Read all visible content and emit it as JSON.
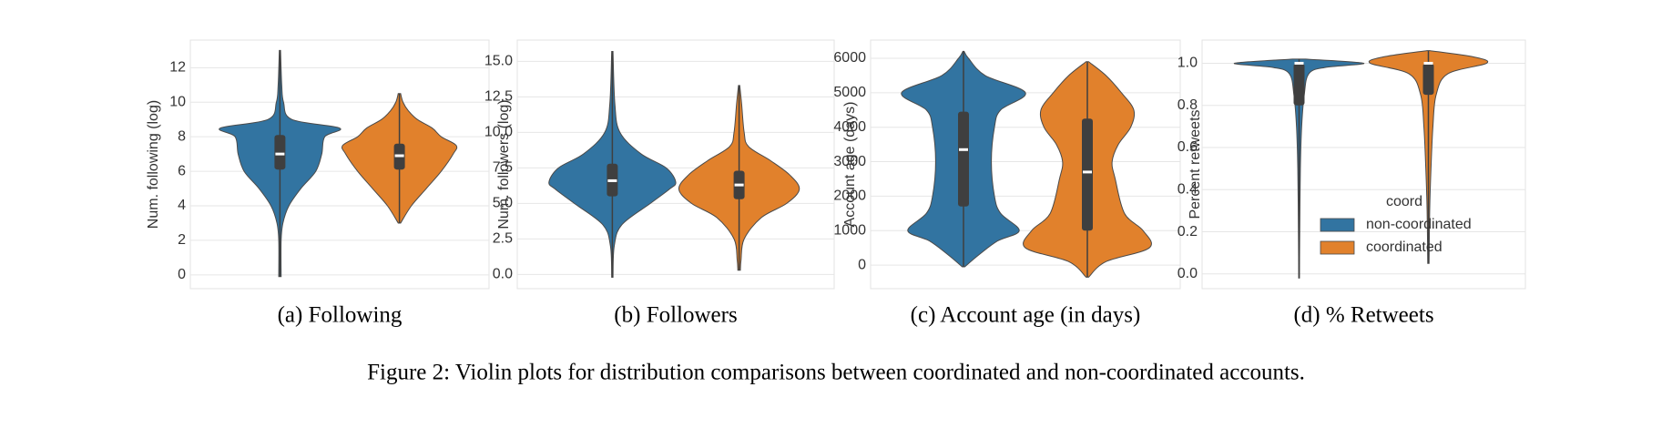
{
  "figure_caption": "Figure 2: Violin plots for distribution comparisons between coordinated and non-coordinated accounts.",
  "chart_data": [
    {
      "type": "violin",
      "caption": "(a) Following",
      "ylabel": "Num. following (log)",
      "ylim": [
        -0.8,
        13.6
      ],
      "yticks": [
        0,
        2,
        4,
        6,
        8,
        10,
        12
      ],
      "grid": true,
      "series": [
        {
          "color": "#3274a1",
          "min": -0.1,
          "q1": 6.1,
          "median": 7,
          "q3": 8.1,
          "max": 13,
          "density_y": [
            -0.1,
            2,
            3,
            4,
            5,
            6,
            7,
            8,
            8.5,
            9,
            10,
            11,
            13
          ],
          "density": [
            0.02,
            0.02,
            0.05,
            0.15,
            0.35,
            0.6,
            0.7,
            0.75,
            1.0,
            0.2,
            0.06,
            0.03,
            0.01
          ]
        },
        {
          "color": "#e1812c",
          "min": 3,
          "q1": 6.1,
          "median": 6.9,
          "q3": 7.6,
          "max": 10.5,
          "density_y": [
            3,
            4,
            5,
            6,
            7,
            7.5,
            8,
            8.5,
            9,
            9.5,
            10,
            10.5
          ],
          "density": [
            0.02,
            0.2,
            0.45,
            0.7,
            0.9,
            0.95,
            0.7,
            0.55,
            0.3,
            0.15,
            0.06,
            0.02
          ]
        }
      ]
    },
    {
      "type": "violin",
      "caption": "(b) Followers",
      "ylabel": "Num. followers (log)",
      "ylim": [
        -1.0,
        16.5
      ],
      "yticks": [
        {
          "value": 0,
          "label": "0.0"
        },
        2.5,
        {
          "value": 5,
          "label": "5.0"
        },
        7.5,
        {
          "value": 10,
          "label": "10.0"
        },
        12.5,
        {
          "value": 15,
          "label": "15.0"
        }
      ],
      "grid": true,
      "series": [
        {
          "color": "#3274a1",
          "min": -0.2,
          "q1": 5.5,
          "median": 6.6,
          "q3": 7.8,
          "max": 15.7,
          "density_y": [
            -0.2,
            2,
            3.5,
            5,
            6,
            6.5,
            7.5,
            8.5,
            10,
            12,
            15.7
          ],
          "density": [
            0.01,
            0.03,
            0.15,
            0.6,
            0.9,
            1.0,
            0.85,
            0.45,
            0.12,
            0.04,
            0.01
          ]
        },
        {
          "color": "#e1812c",
          "min": 0.3,
          "q1": 5.3,
          "median": 6.3,
          "q3": 7.3,
          "max": 13.3,
          "density_y": [
            0.3,
            1,
            2.5,
            4,
            5,
            6,
            7,
            8,
            9,
            10,
            12,
            13.3
          ],
          "density": [
            0.02,
            0.03,
            0.08,
            0.35,
            0.75,
            0.95,
            0.8,
            0.5,
            0.15,
            0.08,
            0.04,
            0.01
          ]
        }
      ]
    },
    {
      "type": "violin",
      "caption": "(c) Account age (in days)",
      "ylabel": "Account age (days)",
      "ylim": [
        -684,
        6528
      ],
      "yticks": [
        0,
        1000,
        2000,
        3000,
        4000,
        5000,
        6000
      ],
      "grid": true,
      "series": [
        {
          "color": "#3274a1",
          "min": -50,
          "q1": 1700,
          "median": 3350,
          "q3": 4450,
          "max": 6200,
          "density_y": [
            -50,
            300,
            700,
            1000,
            1500,
            2000,
            3000,
            4000,
            4500,
            5000,
            5500,
            6000,
            6200
          ],
          "density": [
            0.02,
            0.25,
            0.55,
            0.9,
            0.6,
            0.5,
            0.45,
            0.5,
            0.6,
            1.0,
            0.35,
            0.08,
            0.01
          ]
        },
        {
          "color": "#e1812c",
          "min": -350,
          "q1": 1000,
          "median": 2700,
          "q3": 4250,
          "max": 5900,
          "density_y": [
            -350,
            100,
            500,
            1000,
            1500,
            2500,
            3000,
            3500,
            4000,
            4500,
            5000,
            5500,
            5900
          ],
          "density": [
            0.02,
            0.3,
            1.0,
            0.9,
            0.6,
            0.45,
            0.4,
            0.5,
            0.7,
            0.75,
            0.55,
            0.3,
            0.02
          ]
        }
      ]
    },
    {
      "type": "violin",
      "caption": "(d) % Retweets",
      "ylabel": "Percent retweets",
      "ylim": [
        -0.07,
        1.11
      ],
      "yticks": [
        {
          "value": 0,
          "label": "0.0"
        },
        0.2,
        0.4,
        0.6,
        0.8,
        {
          "value": 1,
          "label": "1.0"
        }
      ],
      "grid": true,
      "legend": {
        "title": "coord",
        "loc": "lower right"
      },
      "series": [
        {
          "name": "non-coordinated",
          "color": "#3274a1",
          "min": -0.02,
          "q1": 0.8,
          "median": 1.0,
          "q3": 1.0,
          "max": 1.02,
          "density_y": [
            -0.02,
            0.2,
            0.5,
            0.7,
            0.85,
            0.95,
            0.98,
            1.0,
            1.02
          ],
          "density": [
            0.005,
            0.01,
            0.02,
            0.04,
            0.08,
            0.15,
            0.4,
            1.0,
            0.1
          ]
        },
        {
          "name": "coordinated",
          "color": "#e1812c",
          "min": 0.05,
          "q1": 0.85,
          "median": 1.0,
          "q3": 1.0,
          "max": 1.06,
          "density_y": [
            0.05,
            0.3,
            0.5,
            0.7,
            0.85,
            0.95,
            1.0,
            1.03,
            1.06
          ],
          "density": [
            0.01,
            0.02,
            0.04,
            0.07,
            0.12,
            0.3,
            0.9,
            0.7,
            0.02
          ]
        }
      ]
    }
  ]
}
